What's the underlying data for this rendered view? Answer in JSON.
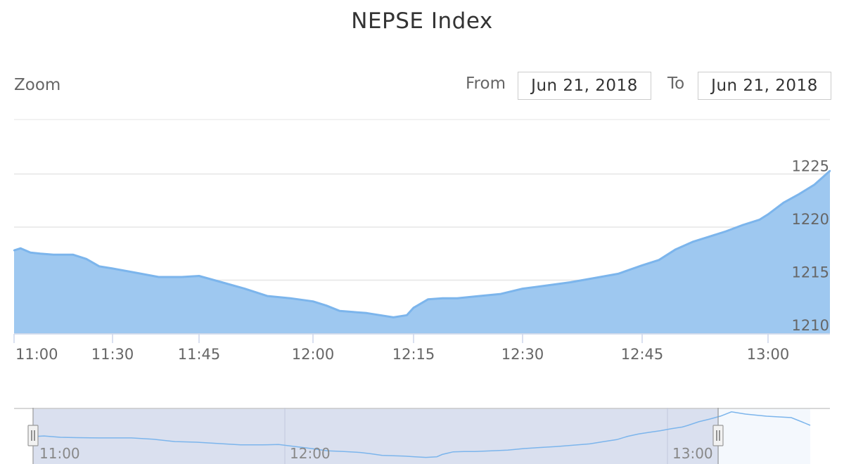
{
  "title": "NEPSE Index",
  "range_selector": {
    "zoom_label": "Zoom",
    "from_label": "From",
    "from_value": "Jun 21, 2018",
    "to_label": "To",
    "to_value": "Jun 21, 2018"
  },
  "colors": {
    "series": "#7cb5ec",
    "area_fill": "#9ec8f0",
    "grid": "#e6e6e6",
    "navigator_mask": "#d4daec"
  },
  "chart_data": {
    "type": "area",
    "title": "NEPSE Index",
    "x_tick_labels": [
      "11:00",
      "11:30",
      "11:45",
      "12:00",
      "12:15",
      "12:30",
      "12:45",
      "13:00"
    ],
    "y_tick_labels": [
      "1225",
      "1220",
      "1215",
      "1210"
    ],
    "ylim": [
      1210,
      1226
    ],
    "grid": true,
    "series": [
      {
        "x": [
          "11:00",
          "11:02",
          "11:05",
          "11:08",
          "11:12",
          "11:18",
          "11:22",
          "11:26",
          "11:30",
          "11:34",
          "11:38",
          "11:42",
          "11:45",
          "11:48",
          "11:51",
          "11:54",
          "11:57",
          "12:00",
          "12:02",
          "12:04",
          "12:06",
          "12:08",
          "12:10",
          "12:12",
          "12:14",
          "12:15",
          "12:17",
          "12:19",
          "12:21",
          "12:24",
          "12:27",
          "12:30",
          "12:33",
          "12:36",
          "12:39",
          "12:42",
          "12:45",
          "12:47",
          "12:49",
          "12:51",
          "12:53",
          "12:55",
          "12:57",
          "12:59",
          "13:00",
          "13:02",
          "13:04",
          "13:06",
          "13:08"
        ],
        "values": [
          1217.8,
          1218.0,
          1217.6,
          1217.5,
          1217.4,
          1217.4,
          1217.0,
          1216.3,
          1216.1,
          1215.7,
          1215.3,
          1215.3,
          1215.4,
          1214.8,
          1214.2,
          1213.5,
          1213.3,
          1213.0,
          1212.6,
          1212.1,
          1212.0,
          1211.9,
          1211.7,
          1211.5,
          1211.7,
          1212.4,
          1213.2,
          1213.3,
          1213.3,
          1213.5,
          1213.7,
          1214.2,
          1214.5,
          1214.8,
          1215.2,
          1215.6,
          1216.4,
          1216.9,
          1217.9,
          1218.6,
          1219.1,
          1219.6,
          1220.2,
          1220.7,
          1221.2,
          1222.3,
          1223.1,
          1224.0,
          1225.3
        ]
      }
    ]
  },
  "navigator": {
    "x_labels": [
      "11:00",
      "12:00",
      "13:00"
    ]
  }
}
